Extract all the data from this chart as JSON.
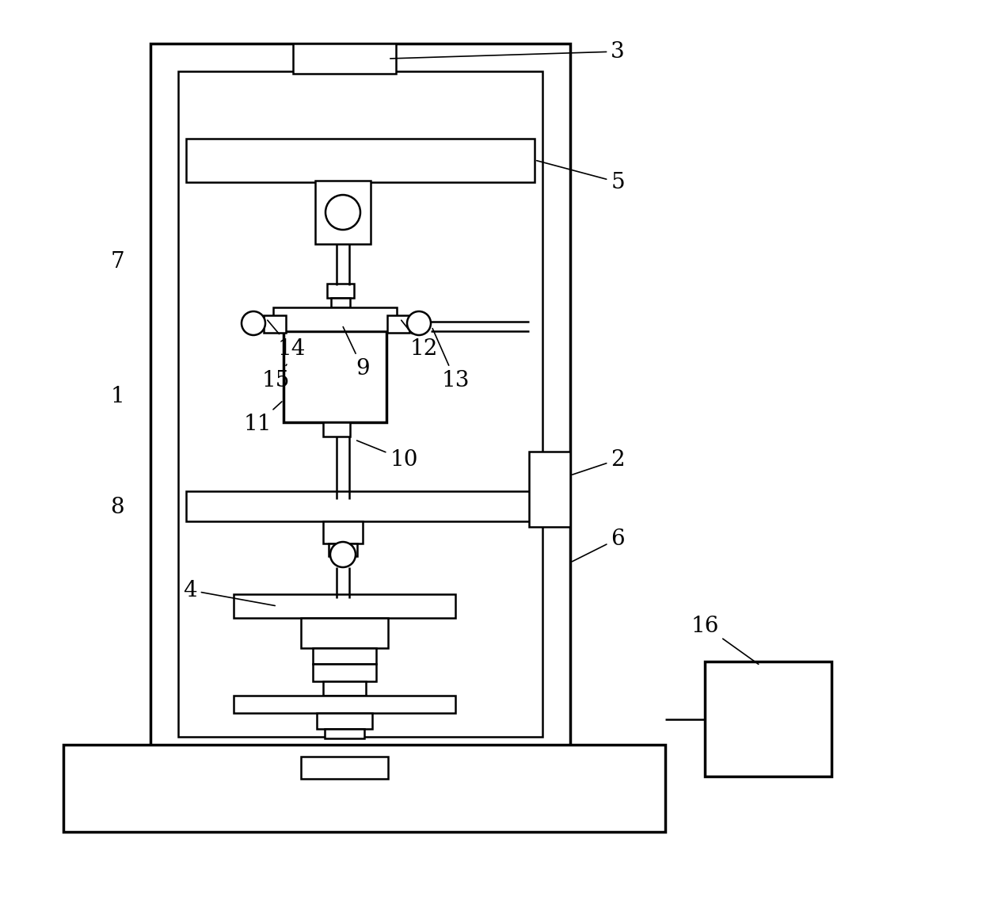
{
  "bg_color": "#ffffff",
  "lw": 1.8,
  "lw2": 2.5,
  "lw3": 1.2,
  "fs": 20,
  "figsize": [
    12.4,
    11.36
  ],
  "dpi": 100
}
